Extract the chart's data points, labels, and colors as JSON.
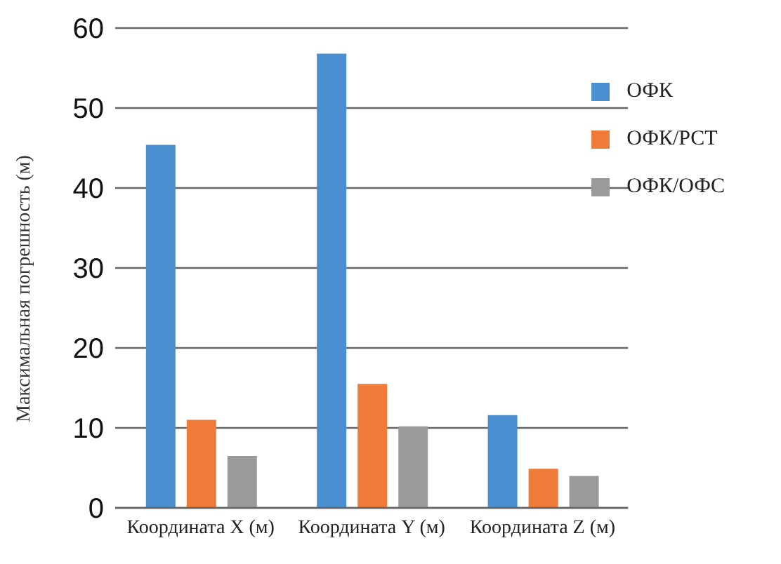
{
  "chart_data": {
    "type": "bar",
    "ylabel": "Максимальная погрешность (м)",
    "categories": [
      "Координата X (м)",
      "Координата Y (м)",
      "Координата Z (м)"
    ],
    "series": [
      {
        "name": "ОФК",
        "color": "#4a8fd0",
        "values": [
          45.4,
          56.8,
          11.6
        ]
      },
      {
        "name": "ОФК/РСТ",
        "color": "#f07a38",
        "values": [
          11.0,
          15.5,
          4.9
        ]
      },
      {
        "name": "ОФК/ОФС",
        "color": "#9a9a9a",
        "values": [
          6.5,
          10.2,
          4.0
        ]
      }
    ],
    "ylim": [
      0,
      60
    ],
    "yticks": [
      0,
      10,
      20,
      30,
      40,
      50,
      60
    ],
    "grid": "y",
    "legend": "top right"
  }
}
